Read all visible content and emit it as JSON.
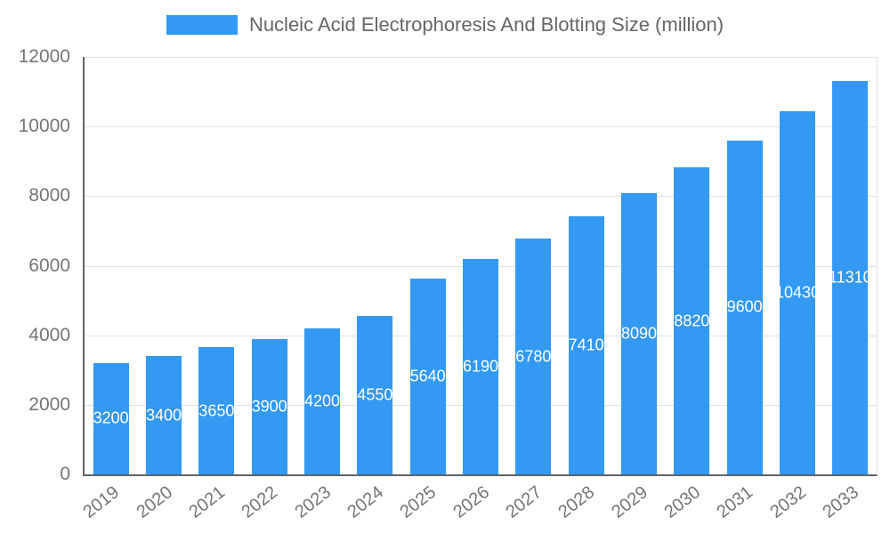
{
  "chart_data": {
    "type": "bar",
    "title": "Nucleic Acid Electrophoresis And Blotting Size (million)",
    "categories": [
      "2019",
      "2020",
      "2021",
      "2022",
      "2023",
      "2024",
      "2025",
      "2026",
      "2027",
      "2028",
      "2029",
      "2030",
      "2031",
      "2032",
      "2033"
    ],
    "values": [
      3200,
      3400,
      3650,
      3900,
      4200,
      4550,
      5640,
      6190,
      6780,
      7410,
      8090,
      8820,
      9600,
      10430,
      11310
    ],
    "xlabel": "",
    "ylabel": "",
    "ylim": [
      0,
      12000
    ],
    "yticks": [
      0,
      2000,
      4000,
      6000,
      8000,
      10000,
      12000
    ],
    "grid": true,
    "legend_position": "top",
    "bar_color": "#3399f3",
    "value_label_color": "#ffffff",
    "axis_line_color": "#5f6368",
    "grid_color": "#e0e0e0",
    "tick_label_color": "#757575"
  }
}
